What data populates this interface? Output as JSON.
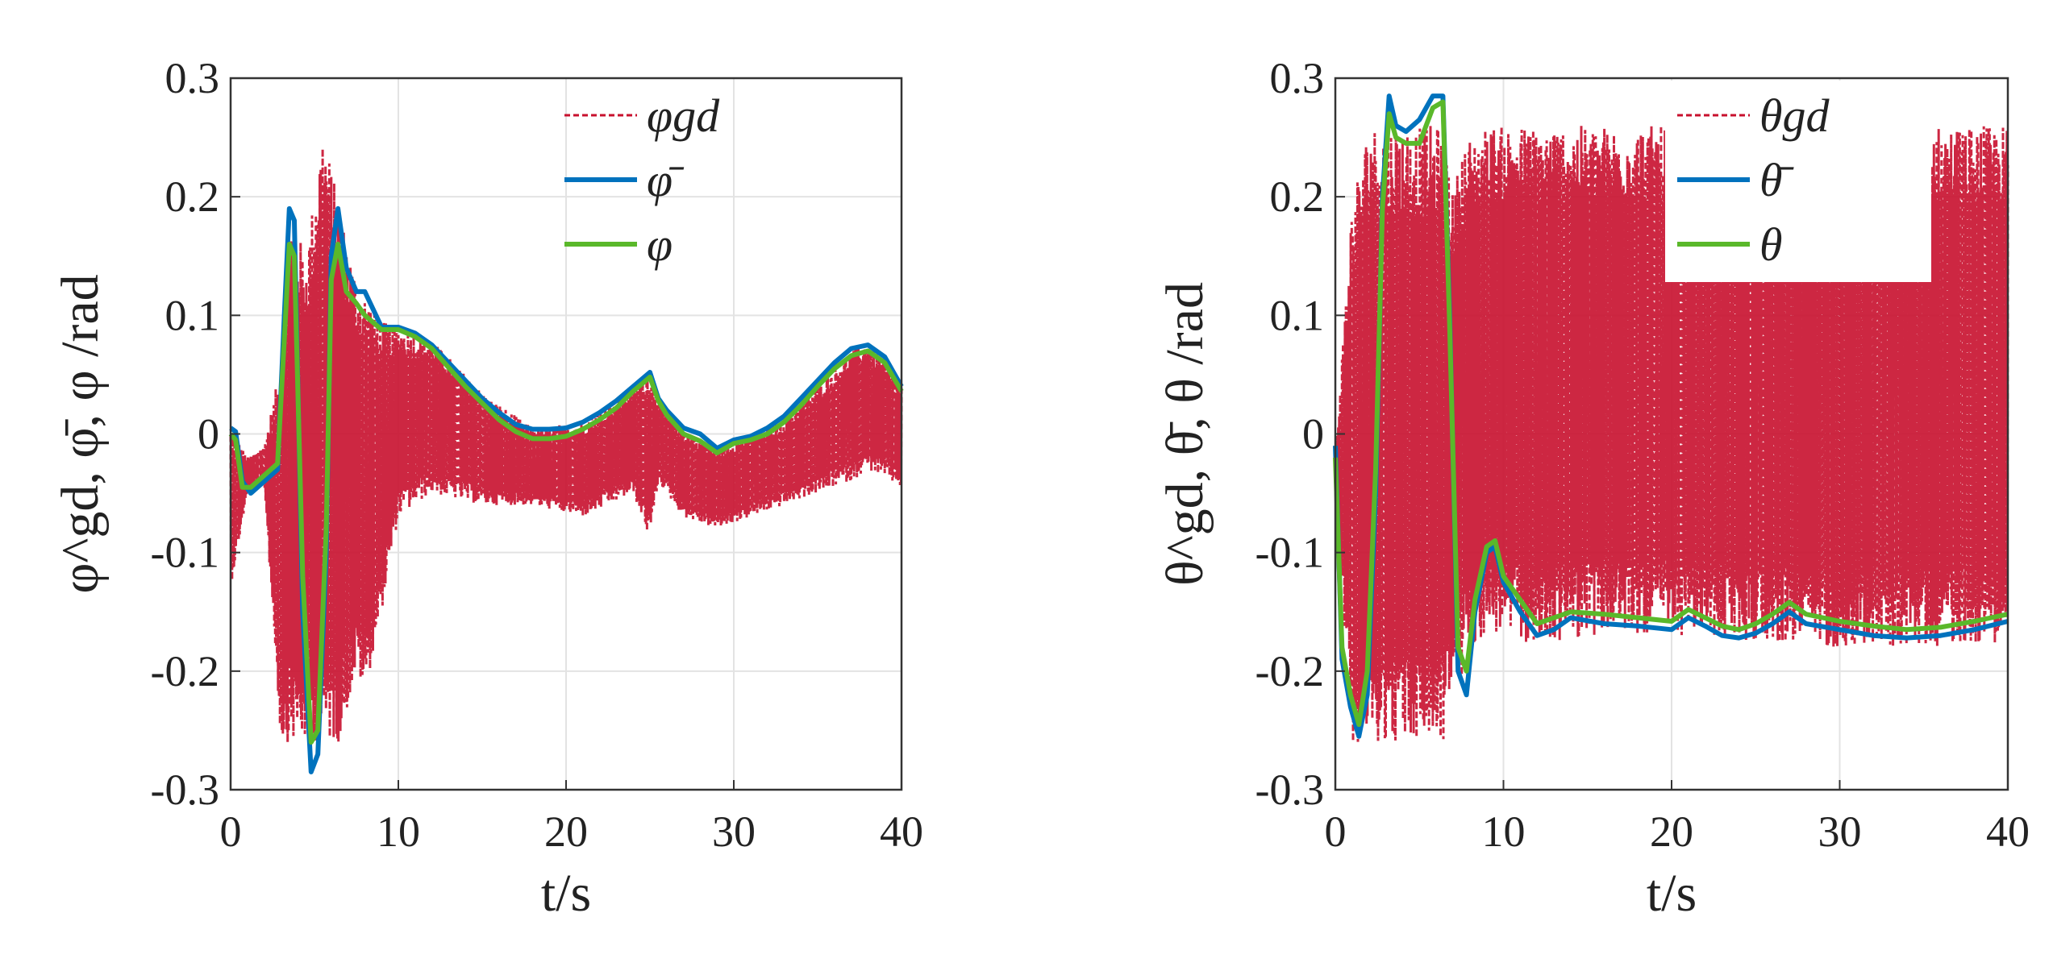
{
  "colors": {
    "reference": "#c8102e",
    "mean": "#0072bd",
    "actual": "#5ab82a"
  },
  "chart_data": [
    {
      "type": "line",
      "xlabel": "t/s",
      "ylabel": "φ^gd, φ̄, φ /rad",
      "xlim": [
        0,
        40
      ],
      "ylim": [
        -0.3,
        0.3
      ],
      "xticks": [
        "0",
        "10",
        "20",
        "30",
        "40"
      ],
      "yticks": [
        "0.3",
        "0.2",
        "0.1",
        "0",
        "-0.1",
        "-0.2",
        "-0.3"
      ],
      "grid": true,
      "legend_position": "top-right",
      "legend": [
        "φgd",
        "φ̄",
        "φ"
      ],
      "series": [
        {
          "name": "φ̄",
          "color_key": "mean",
          "x": [
            0,
            0.3,
            0.7,
            1.2,
            2.0,
            2.8,
            3.2,
            3.5,
            3.8,
            4.3,
            4.8,
            5.2,
            5.7,
            6.0,
            6.4,
            6.9,
            7.5,
            8.0,
            9,
            10,
            11,
            12,
            13,
            14,
            15,
            16,
            17,
            18,
            19,
            20,
            21,
            22,
            23,
            24,
            25,
            25.5,
            26,
            27,
            28,
            29,
            30,
            31,
            32,
            33,
            34,
            35,
            36,
            37,
            38,
            39,
            40
          ],
          "values": [
            0.005,
            0.002,
            -0.04,
            -0.05,
            -0.04,
            -0.03,
            0.1,
            0.19,
            0.18,
            -0.15,
            -0.285,
            -0.27,
            -0.1,
            0.15,
            0.19,
            0.14,
            0.12,
            0.12,
            0.09,
            0.09,
            0.085,
            0.075,
            0.06,
            0.045,
            0.03,
            0.018,
            0.008,
            0.004,
            0.004,
            0.005,
            0.01,
            0.018,
            0.028,
            0.04,
            0.052,
            0.03,
            0.02,
            0.005,
            0.0,
            -0.012,
            -0.005,
            -0.002,
            0.005,
            0.015,
            0.03,
            0.045,
            0.06,
            0.072,
            0.075,
            0.065,
            0.04
          ]
        },
        {
          "name": "φ",
          "color_key": "actual",
          "x": [
            0,
            0.3,
            0.7,
            1.2,
            2.0,
            2.8,
            3.2,
            3.5,
            3.8,
            4.3,
            4.8,
            5.2,
            5.7,
            6.0,
            6.4,
            6.9,
            7.5,
            8.0,
            9,
            10,
            11,
            12,
            13,
            14,
            15,
            16,
            17,
            18,
            19,
            20,
            21,
            22,
            23,
            24,
            25,
            25.5,
            26,
            27,
            28,
            29,
            30,
            31,
            32,
            33,
            34,
            35,
            36,
            37,
            38,
            39,
            40
          ],
          "values": [
            0.0,
            -0.005,
            -0.045,
            -0.045,
            -0.035,
            -0.025,
            0.08,
            0.16,
            0.15,
            -0.12,
            -0.26,
            -0.25,
            -0.08,
            0.13,
            0.16,
            0.12,
            0.11,
            0.1,
            0.088,
            0.088,
            0.082,
            0.072,
            0.056,
            0.04,
            0.026,
            0.012,
            0.002,
            -0.004,
            -0.004,
            -0.002,
            0.004,
            0.012,
            0.022,
            0.036,
            0.048,
            0.028,
            0.016,
            0.0,
            -0.006,
            -0.016,
            -0.008,
            -0.005,
            0.0,
            0.01,
            0.024,
            0.04,
            0.055,
            0.066,
            0.07,
            0.06,
            0.036
          ]
        },
        {
          "name": "φgd",
          "color_key": "reference",
          "style": "dashed, high-frequency oscillation",
          "x": [
            0,
            1,
            2,
            3,
            3.5,
            4.5,
            5.5,
            6.5,
            7.5,
            8,
            9,
            10,
            12,
            15,
            18,
            21,
            24,
            25,
            25.5,
            27,
            29,
            31,
            33,
            35,
            37,
            38,
            40
          ],
          "upper": [
            0.005,
            -0.02,
            -0.01,
            0.06,
            0.19,
            0.15,
            0.26,
            0.19,
            0.13,
            0.12,
            0.095,
            0.09,
            0.08,
            0.035,
            0.005,
            0.01,
            0.04,
            0.055,
            0.03,
            0.005,
            -0.012,
            0.0,
            0.012,
            0.04,
            0.07,
            0.078,
            0.04
          ],
          "lower": [
            -0.13,
            -0.05,
            -0.04,
            -0.26,
            -0.26,
            -0.26,
            -0.26,
            -0.26,
            -0.2,
            -0.22,
            -0.15,
            -0.07,
            -0.05,
            -0.06,
            -0.06,
            -0.07,
            -0.05,
            -0.09,
            -0.04,
            -0.07,
            -0.08,
            -0.07,
            -0.06,
            -0.05,
            -0.04,
            -0.03,
            -0.045
          ]
        }
      ]
    },
    {
      "type": "line",
      "xlabel": "t/s",
      "ylabel": "θ^gd, θ̄, θ /rad",
      "xlim": [
        0,
        40
      ],
      "ylim": [
        -0.3,
        0.3
      ],
      "xticks": [
        "0",
        "10",
        "20",
        "30",
        "40"
      ],
      "yticks": [
        "0.3",
        "0.2",
        "0.1",
        "0",
        "-0.1",
        "-0.2",
        "-0.3"
      ],
      "grid": true,
      "legend_position": "top-right",
      "legend": [
        "θgd",
        "θ̄",
        "θ"
      ],
      "series": [
        {
          "name": "θ̄",
          "color_key": "mean",
          "x": [
            0,
            0.4,
            0.9,
            1.4,
            1.9,
            2.4,
            2.8,
            3.2,
            3.6,
            4.2,
            5.0,
            5.8,
            6.4,
            6.8,
            7.3,
            7.8,
            8.3,
            9.0,
            9.5,
            10,
            11,
            12,
            13,
            14,
            16,
            18,
            20,
            21,
            22,
            23,
            24,
            25,
            26,
            27,
            28,
            30,
            32,
            34,
            36,
            38,
            40
          ],
          "values": [
            -0.01,
            -0.19,
            -0.23,
            -0.255,
            -0.22,
            -0.05,
            0.2,
            0.285,
            0.26,
            0.255,
            0.265,
            0.285,
            0.285,
            0.1,
            -0.2,
            -0.22,
            -0.15,
            -0.1,
            -0.095,
            -0.125,
            -0.15,
            -0.17,
            -0.165,
            -0.155,
            -0.16,
            -0.162,
            -0.165,
            -0.155,
            -0.162,
            -0.17,
            -0.172,
            -0.168,
            -0.16,
            -0.15,
            -0.16,
            -0.165,
            -0.17,
            -0.172,
            -0.17,
            -0.165,
            -0.158
          ]
        },
        {
          "name": "θ",
          "color_key": "actual",
          "x": [
            0,
            0.4,
            0.9,
            1.4,
            1.9,
            2.4,
            2.8,
            3.2,
            3.6,
            4.2,
            5.0,
            5.8,
            6.4,
            6.8,
            7.3,
            7.8,
            8.3,
            9.0,
            9.5,
            10,
            11,
            12,
            13,
            14,
            16,
            18,
            20,
            21,
            22,
            23,
            24,
            25,
            26,
            27,
            28,
            30,
            32,
            34,
            36,
            38,
            40
          ],
          "values": [
            -0.02,
            -0.18,
            -0.22,
            -0.245,
            -0.2,
            -0.03,
            0.19,
            0.27,
            0.25,
            0.245,
            0.245,
            0.275,
            0.28,
            0.09,
            -0.18,
            -0.2,
            -0.14,
            -0.095,
            -0.09,
            -0.12,
            -0.14,
            -0.16,
            -0.155,
            -0.15,
            -0.152,
            -0.155,
            -0.158,
            -0.148,
            -0.155,
            -0.162,
            -0.165,
            -0.16,
            -0.152,
            -0.142,
            -0.152,
            -0.158,
            -0.162,
            -0.165,
            -0.163,
            -0.158,
            -0.152
          ]
        },
        {
          "name": "θgd",
          "color_key": "reference",
          "style": "dashed, high-frequency oscillation",
          "x": [
            0,
            1,
            2,
            3,
            3.5,
            4.5,
            5.5,
            6.5,
            7,
            7.5,
            8,
            9,
            10,
            12,
            15,
            20,
            25,
            30,
            35,
            40
          ],
          "upper": [
            -0.02,
            0.2,
            0.26,
            0.26,
            0.26,
            0.26,
            0.26,
            0.26,
            0.2,
            0.24,
            0.25,
            0.26,
            0.26,
            0.26,
            0.26,
            0.26,
            0.26,
            0.26,
            0.26,
            0.26
          ],
          "lower": [
            -0.05,
            -0.26,
            -0.26,
            -0.26,
            -0.26,
            -0.26,
            -0.26,
            -0.26,
            -0.2,
            -0.21,
            -0.18,
            -0.17,
            -0.17,
            -0.18,
            -0.17,
            -0.17,
            -0.175,
            -0.18,
            -0.18,
            -0.175
          ]
        }
      ]
    }
  ]
}
